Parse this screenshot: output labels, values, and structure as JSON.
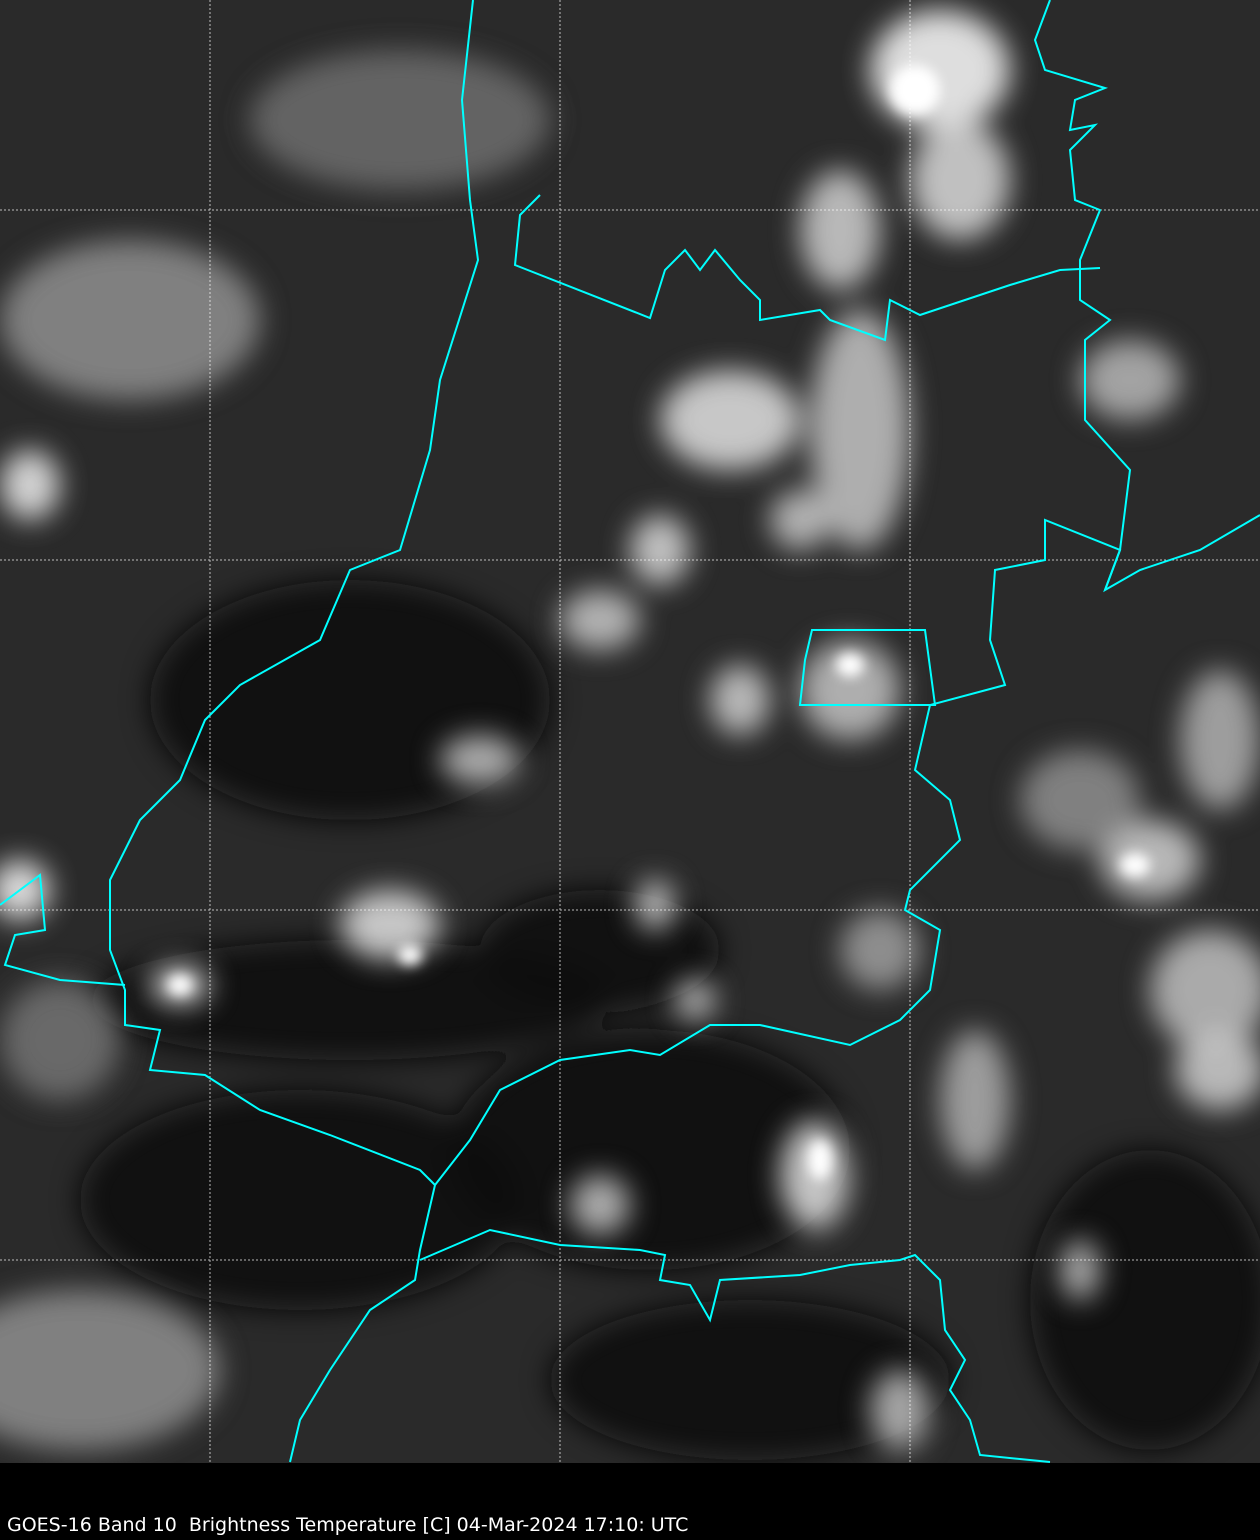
{
  "caption": "GOES-16 Band 10  Brightness Temperature [C] 04-Mar-2024 17:10: UTC",
  "colors": {
    "border": "#00ffff",
    "grid": "#ffffff",
    "background": "#000000"
  },
  "layers": [
    "infrared-brightness-temperature-imagery",
    "state-borders",
    "lat-lon-grid"
  ]
}
